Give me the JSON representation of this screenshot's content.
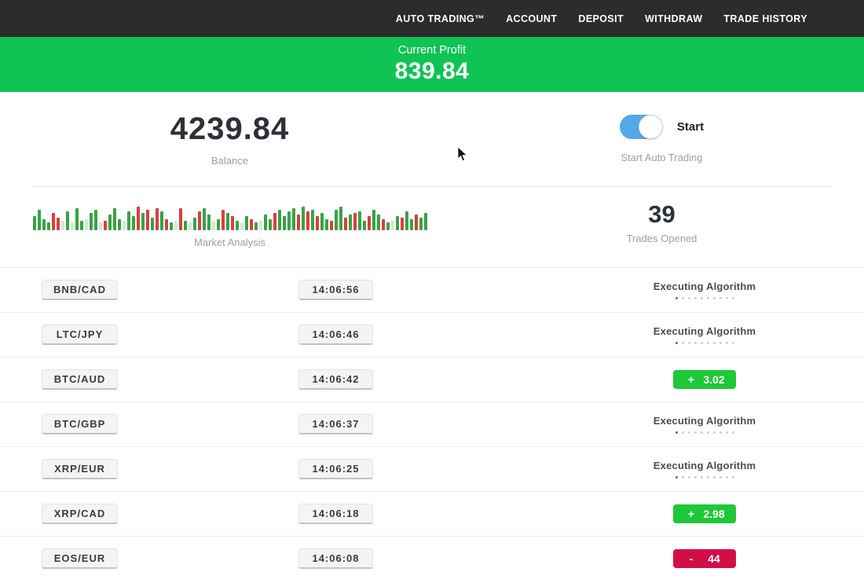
{
  "nav": {
    "items": [
      {
        "label": "AUTO TRADING™"
      },
      {
        "label": "ACCOUNT"
      },
      {
        "label": "DEPOSIT"
      },
      {
        "label": "WITHDRAW"
      },
      {
        "label": "TRADE HISTORY"
      }
    ]
  },
  "banner": {
    "label": "Current Profit",
    "value": "839.84"
  },
  "stats": {
    "balance_value": "4239.84",
    "balance_label": "Balance",
    "toggle_label": "Start",
    "toggle_state": "on",
    "toggle_sublabel": "Start Auto Trading",
    "market_label": "Market Analysis",
    "trades_value": "39",
    "trades_label": "Trades Opened"
  },
  "colors": {
    "nav_bg": "#2d2c2c",
    "banner_green": "#10c355",
    "badge_green": "#1ec838",
    "badge_red": "#d20e49",
    "toggle_blue": "#55a8e8",
    "bar_green": "#39a246",
    "bar_red": "#d64040",
    "bar_pale": "#d4e9d4"
  },
  "chart_data": {
    "type": "bar",
    "title": "Market Analysis",
    "note": "decorative sparkline of green/red market bars, heights in px, baseline-aligned",
    "bars": {
      "heights": [
        18,
        26,
        14,
        10,
        22,
        16,
        12,
        24,
        10,
        28,
        12,
        14,
        22,
        26,
        10,
        12,
        20,
        28,
        14,
        12,
        24,
        18,
        30,
        22,
        26,
        16,
        28,
        24,
        14,
        10,
        12,
        28,
        12,
        10,
        16,
        24,
        28,
        20,
        12,
        14,
        26,
        22,
        18,
        12,
        10,
        18,
        14,
        10,
        12,
        20,
        14,
        22,
        26,
        18,
        24,
        28,
        20,
        30,
        24,
        26,
        18,
        22,
        14,
        12,
        26,
        30,
        16,
        20,
        22,
        24,
        12,
        18,
        26,
        20,
        14,
        10,
        12,
        18,
        16,
        24,
        14,
        20,
        16,
        22
      ],
      "colors": [
        "g",
        "g",
        "g",
        "g",
        "r",
        "r",
        "p",
        "g",
        "p",
        "g",
        "g",
        "p",
        "g",
        "g",
        "p",
        "r",
        "g",
        "g",
        "g",
        "p",
        "g",
        "g",
        "r",
        "g",
        "r",
        "g",
        "r",
        "g",
        "r",
        "g",
        "p",
        "r",
        "g",
        "p",
        "g",
        "r",
        "g",
        "g",
        "p",
        "g",
        "r",
        "g",
        "r",
        "g",
        "p",
        "g",
        "r",
        "g",
        "p",
        "g",
        "g",
        "r",
        "g",
        "g",
        "g",
        "g",
        "r",
        "g",
        "r",
        "g",
        "r",
        "g",
        "g",
        "r",
        "g",
        "g",
        "r",
        "g",
        "r",
        "g",
        "g",
        "r",
        "g",
        "g",
        "r",
        "g",
        "p",
        "g",
        "r",
        "g",
        "g",
        "r",
        "g",
        "g"
      ]
    }
  },
  "trades": {
    "executing_dot_count": 10,
    "rows": [
      {
        "pair": "BNB/CAD",
        "time": "14:06:56",
        "status": "executing",
        "status_label": "Executing Algorithm"
      },
      {
        "pair": "LTC/JPY",
        "time": "14:06:46",
        "status": "executing",
        "status_label": "Executing Algorithm"
      },
      {
        "pair": "BTC/AUD",
        "time": "14:06:42",
        "status": "profit",
        "result_sign": "+",
        "result_value": "3.02"
      },
      {
        "pair": "BTC/GBP",
        "time": "14:06:37",
        "status": "executing",
        "status_label": "Executing Algorithm"
      },
      {
        "pair": "XRP/EUR",
        "time": "14:06:25",
        "status": "executing",
        "status_label": "Executing Algorithm"
      },
      {
        "pair": "XRP/CAD",
        "time": "14:06:18",
        "status": "profit",
        "result_sign": "+",
        "result_value": "2.98"
      },
      {
        "pair": "EOS/EUR",
        "time": "14:06:08",
        "status": "loss",
        "result_sign": "-",
        "result_value": "44"
      }
    ]
  }
}
